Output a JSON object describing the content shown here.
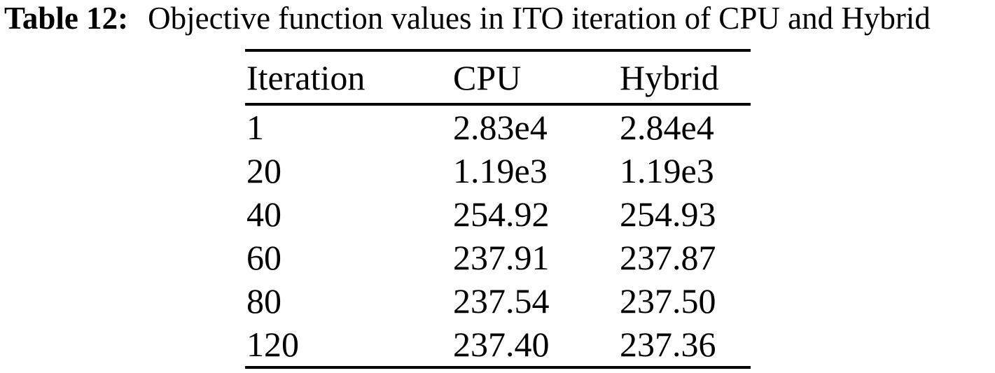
{
  "caption": {
    "label": "Table 12:",
    "text": "Objective function values in ITO iteration of CPU and Hybrid"
  },
  "chart_data": {
    "type": "table",
    "title": "Objective function values in ITO iteration of CPU and Hybrid",
    "columns": [
      "Iteration",
      "CPU",
      "Hybrid"
    ],
    "rows": [
      [
        "1",
        "2.83e4",
        "2.84e4"
      ],
      [
        "20",
        "1.19e3",
        "1.19e3"
      ],
      [
        "40",
        "254.92",
        "254.93"
      ],
      [
        "60",
        "237.91",
        "237.87"
      ],
      [
        "80",
        "237.54",
        "237.50"
      ],
      [
        "120",
        "237.40",
        "237.36"
      ]
    ]
  },
  "colors": {
    "text": "#000000",
    "background": "#ffffff",
    "rule": "#000000"
  }
}
